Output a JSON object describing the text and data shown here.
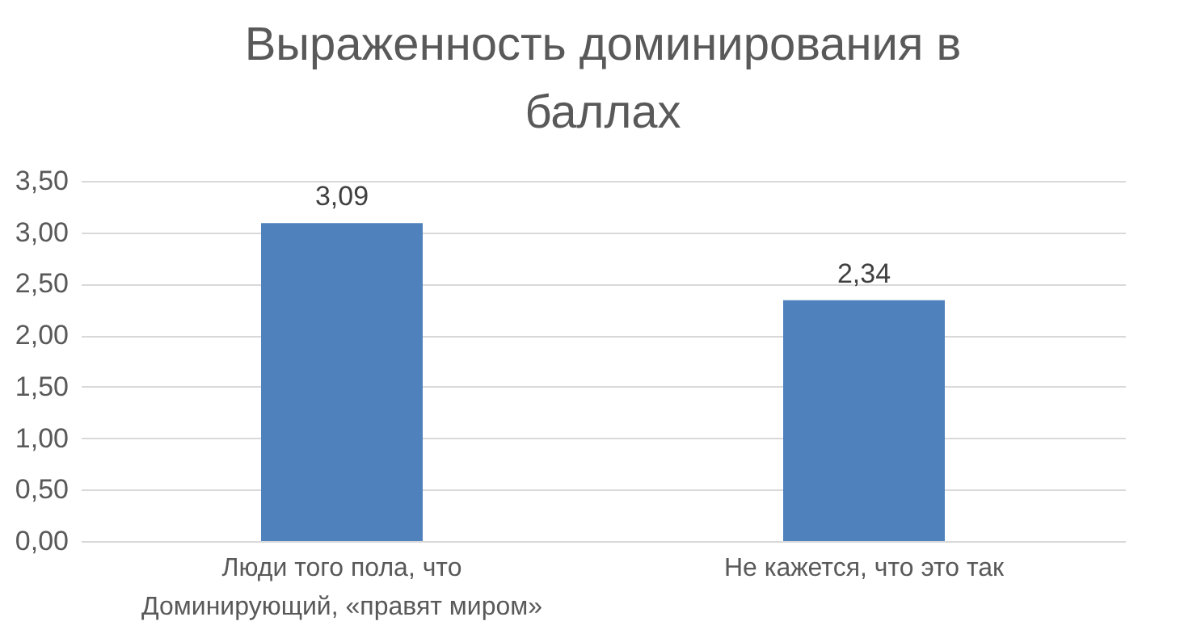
{
  "chart_data": {
    "type": "bar",
    "title": "Выраженность доминирования в баллах",
    "categories": [
      "Люди того пола, что Доминирующий, «правят миром»",
      "Не кажется, что это так"
    ],
    "values": [
      3.09,
      2.34
    ],
    "color": "#4f81bd",
    "ylim": [
      0,
      3.5
    ],
    "yticks": [
      {
        "value": 0,
        "label": "0,00"
      },
      {
        "value": 0.5,
        "label": "0,50"
      },
      {
        "value": 1,
        "label": "1,00"
      },
      {
        "value": 1.5,
        "label": "1,50"
      },
      {
        "value": 2,
        "label": "2,00"
      },
      {
        "value": 2.5,
        "label": "2,50"
      },
      {
        "value": 3,
        "label": "3,00"
      },
      {
        "value": 3.5,
        "label": "3,50"
      }
    ],
    "grid": "y",
    "data_labels": true,
    "value_labels": [
      "3,09",
      "2,34"
    ]
  }
}
